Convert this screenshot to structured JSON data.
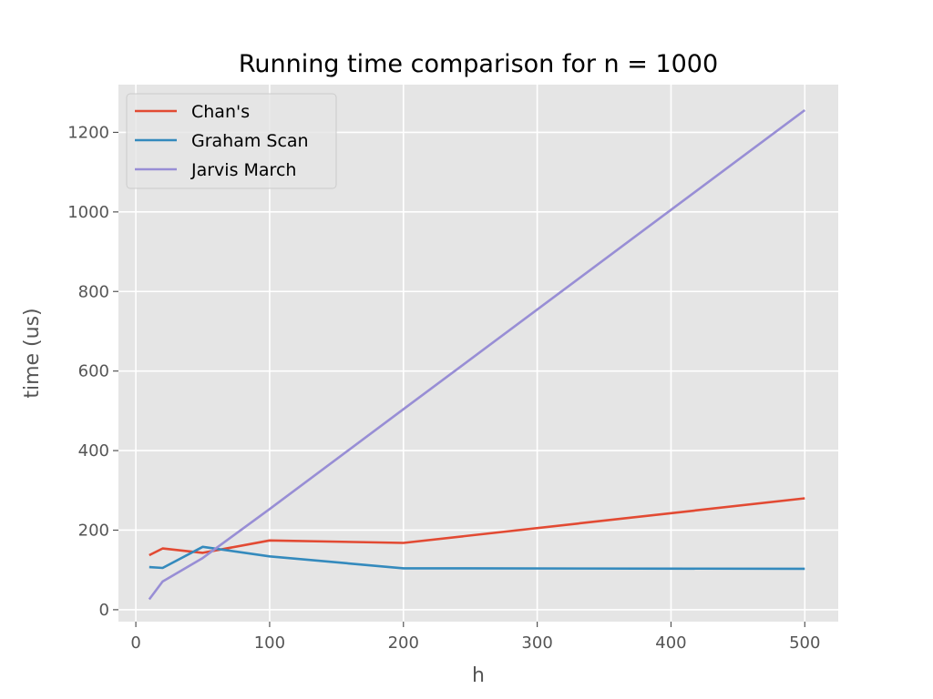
{
  "chart_data": {
    "type": "line",
    "title": "Running time comparison for n = 1000",
    "xlabel": "h",
    "ylabel": "time (us)",
    "xlim": [
      -13,
      525
    ],
    "ylim": [
      -30,
      1320
    ],
    "xticks": [
      0,
      100,
      200,
      300,
      400,
      500
    ],
    "yticks": [
      0,
      200,
      400,
      600,
      800,
      1000,
      1200
    ],
    "xtick_labels": [
      "0",
      "100",
      "200",
      "300",
      "400",
      "500"
    ],
    "ytick_labels": [
      "0",
      "200",
      "400",
      "600",
      "800",
      "1000",
      "1200"
    ],
    "grid": true,
    "legend_position": "top-left",
    "series": [
      {
        "name": "Chan's",
        "color": "#E24A33",
        "x": [
          10,
          20,
          50,
          100,
          200,
          500
        ],
        "y": [
          137,
          154,
          143,
          174,
          168,
          280
        ]
      },
      {
        "name": "Graham Scan",
        "color": "#348ABD",
        "x": [
          10,
          20,
          50,
          100,
          200,
          500
        ],
        "y": [
          107,
          105,
          158,
          134,
          104,
          103
        ]
      },
      {
        "name": "Jarvis March",
        "color": "#988ED5",
        "x": [
          10,
          20,
          50,
          100,
          200,
          500
        ],
        "y": [
          26,
          71,
          130,
          253,
          504,
          1256
        ]
      }
    ]
  }
}
